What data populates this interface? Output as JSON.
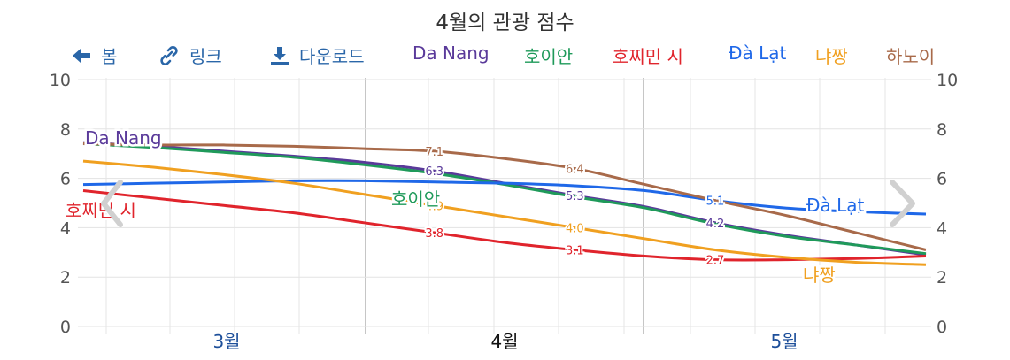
{
  "title": "4월의 관광 점수",
  "toolbar": {
    "back_label": "봄",
    "link_label": "링크",
    "download_label": "다운로드"
  },
  "colors": {
    "Da Nang": "#5a3a9a",
    "호이안": "#1f9a5a",
    "호찌민 시": "#e0242c",
    "Đà Lạt": "#1f68e8",
    "냐짱": "#f0a020",
    "하노이": "#a86a4a"
  },
  "chart_data": {
    "type": "line",
    "title": "4월의 관광 점수",
    "x_ticks": [
      "3월",
      "4월",
      "5월"
    ],
    "highlighted_tick": "4월",
    "ylim": [
      0,
      10
    ],
    "y_ticks": [
      0,
      2,
      4,
      6,
      8,
      10
    ],
    "grid": true,
    "legend_position": "top",
    "x": [
      0.0,
      0.25,
      0.5,
      0.75,
      1.0,
      1.25,
      1.5,
      1.75,
      2.0,
      2.25,
      2.5,
      2.75,
      3.0
    ],
    "series": [
      {
        "name": "Da Nang",
        "values": [
          7.45,
          7.3,
          7.1,
          6.9,
          6.65,
          6.3,
          5.8,
          5.3,
          4.85,
          4.2,
          3.7,
          3.3,
          2.9
        ]
      },
      {
        "name": "호이안",
        "values": [
          7.4,
          7.25,
          7.05,
          6.85,
          6.55,
          6.2,
          5.75,
          5.25,
          4.8,
          4.15,
          3.65,
          3.3,
          2.95
        ]
      },
      {
        "name": "호찌민 시",
        "values": [
          5.5,
          5.2,
          4.9,
          4.6,
          4.2,
          3.8,
          3.4,
          3.1,
          2.85,
          2.7,
          2.7,
          2.75,
          2.85
        ]
      },
      {
        "name": "Đà Lạt",
        "values": [
          5.75,
          5.8,
          5.85,
          5.9,
          5.9,
          5.85,
          5.8,
          5.7,
          5.5,
          5.1,
          4.8,
          4.65,
          4.55
        ]
      },
      {
        "name": "냐짱",
        "values": [
          6.7,
          6.45,
          6.15,
          5.8,
          5.35,
          4.9,
          4.45,
          4.0,
          3.55,
          3.1,
          2.8,
          2.6,
          2.5
        ]
      },
      {
        "name": "하노이",
        "values": [
          7.4,
          7.35,
          7.35,
          7.3,
          7.2,
          7.1,
          6.8,
          6.4,
          5.75,
          5.1,
          4.5,
          3.8,
          3.1
        ]
      }
    ],
    "data_labels": [
      {
        "series": "하노이",
        "x": 1.25,
        "value": "7.1"
      },
      {
        "series": "Da Nang",
        "x": 1.25,
        "value": "6.3"
      },
      {
        "series": "냐짱",
        "x": 1.25,
        "value": "4.9"
      },
      {
        "series": "호찌민 시",
        "x": 1.25,
        "value": "3.8"
      },
      {
        "series": "하노이",
        "x": 1.75,
        "value": "6.4"
      },
      {
        "series": "Da Nang",
        "x": 1.75,
        "value": "5.3"
      },
      {
        "series": "냐짱",
        "x": 1.75,
        "value": "4.0"
      },
      {
        "series": "호찌민 시",
        "x": 1.75,
        "value": "3.1"
      },
      {
        "series": "Đà Lạt",
        "x": 2.25,
        "value": "5.1"
      },
      {
        "series": "Da Nang",
        "x": 2.25,
        "value": "4.2"
      },
      {
        "series": "호찌민 시",
        "x": 2.25,
        "value": "2.7"
      }
    ],
    "end_labels": [
      {
        "series": "Da Nang",
        "text": "Da Nang"
      },
      {
        "series": "호찌민 시",
        "text": "호찌민 시"
      },
      {
        "series": "호이안",
        "text": "호이안"
      },
      {
        "series": "Đà Lạt",
        "text": "Đà Lạt"
      },
      {
        "series": "냐짱",
        "text": "냐짱"
      }
    ]
  }
}
